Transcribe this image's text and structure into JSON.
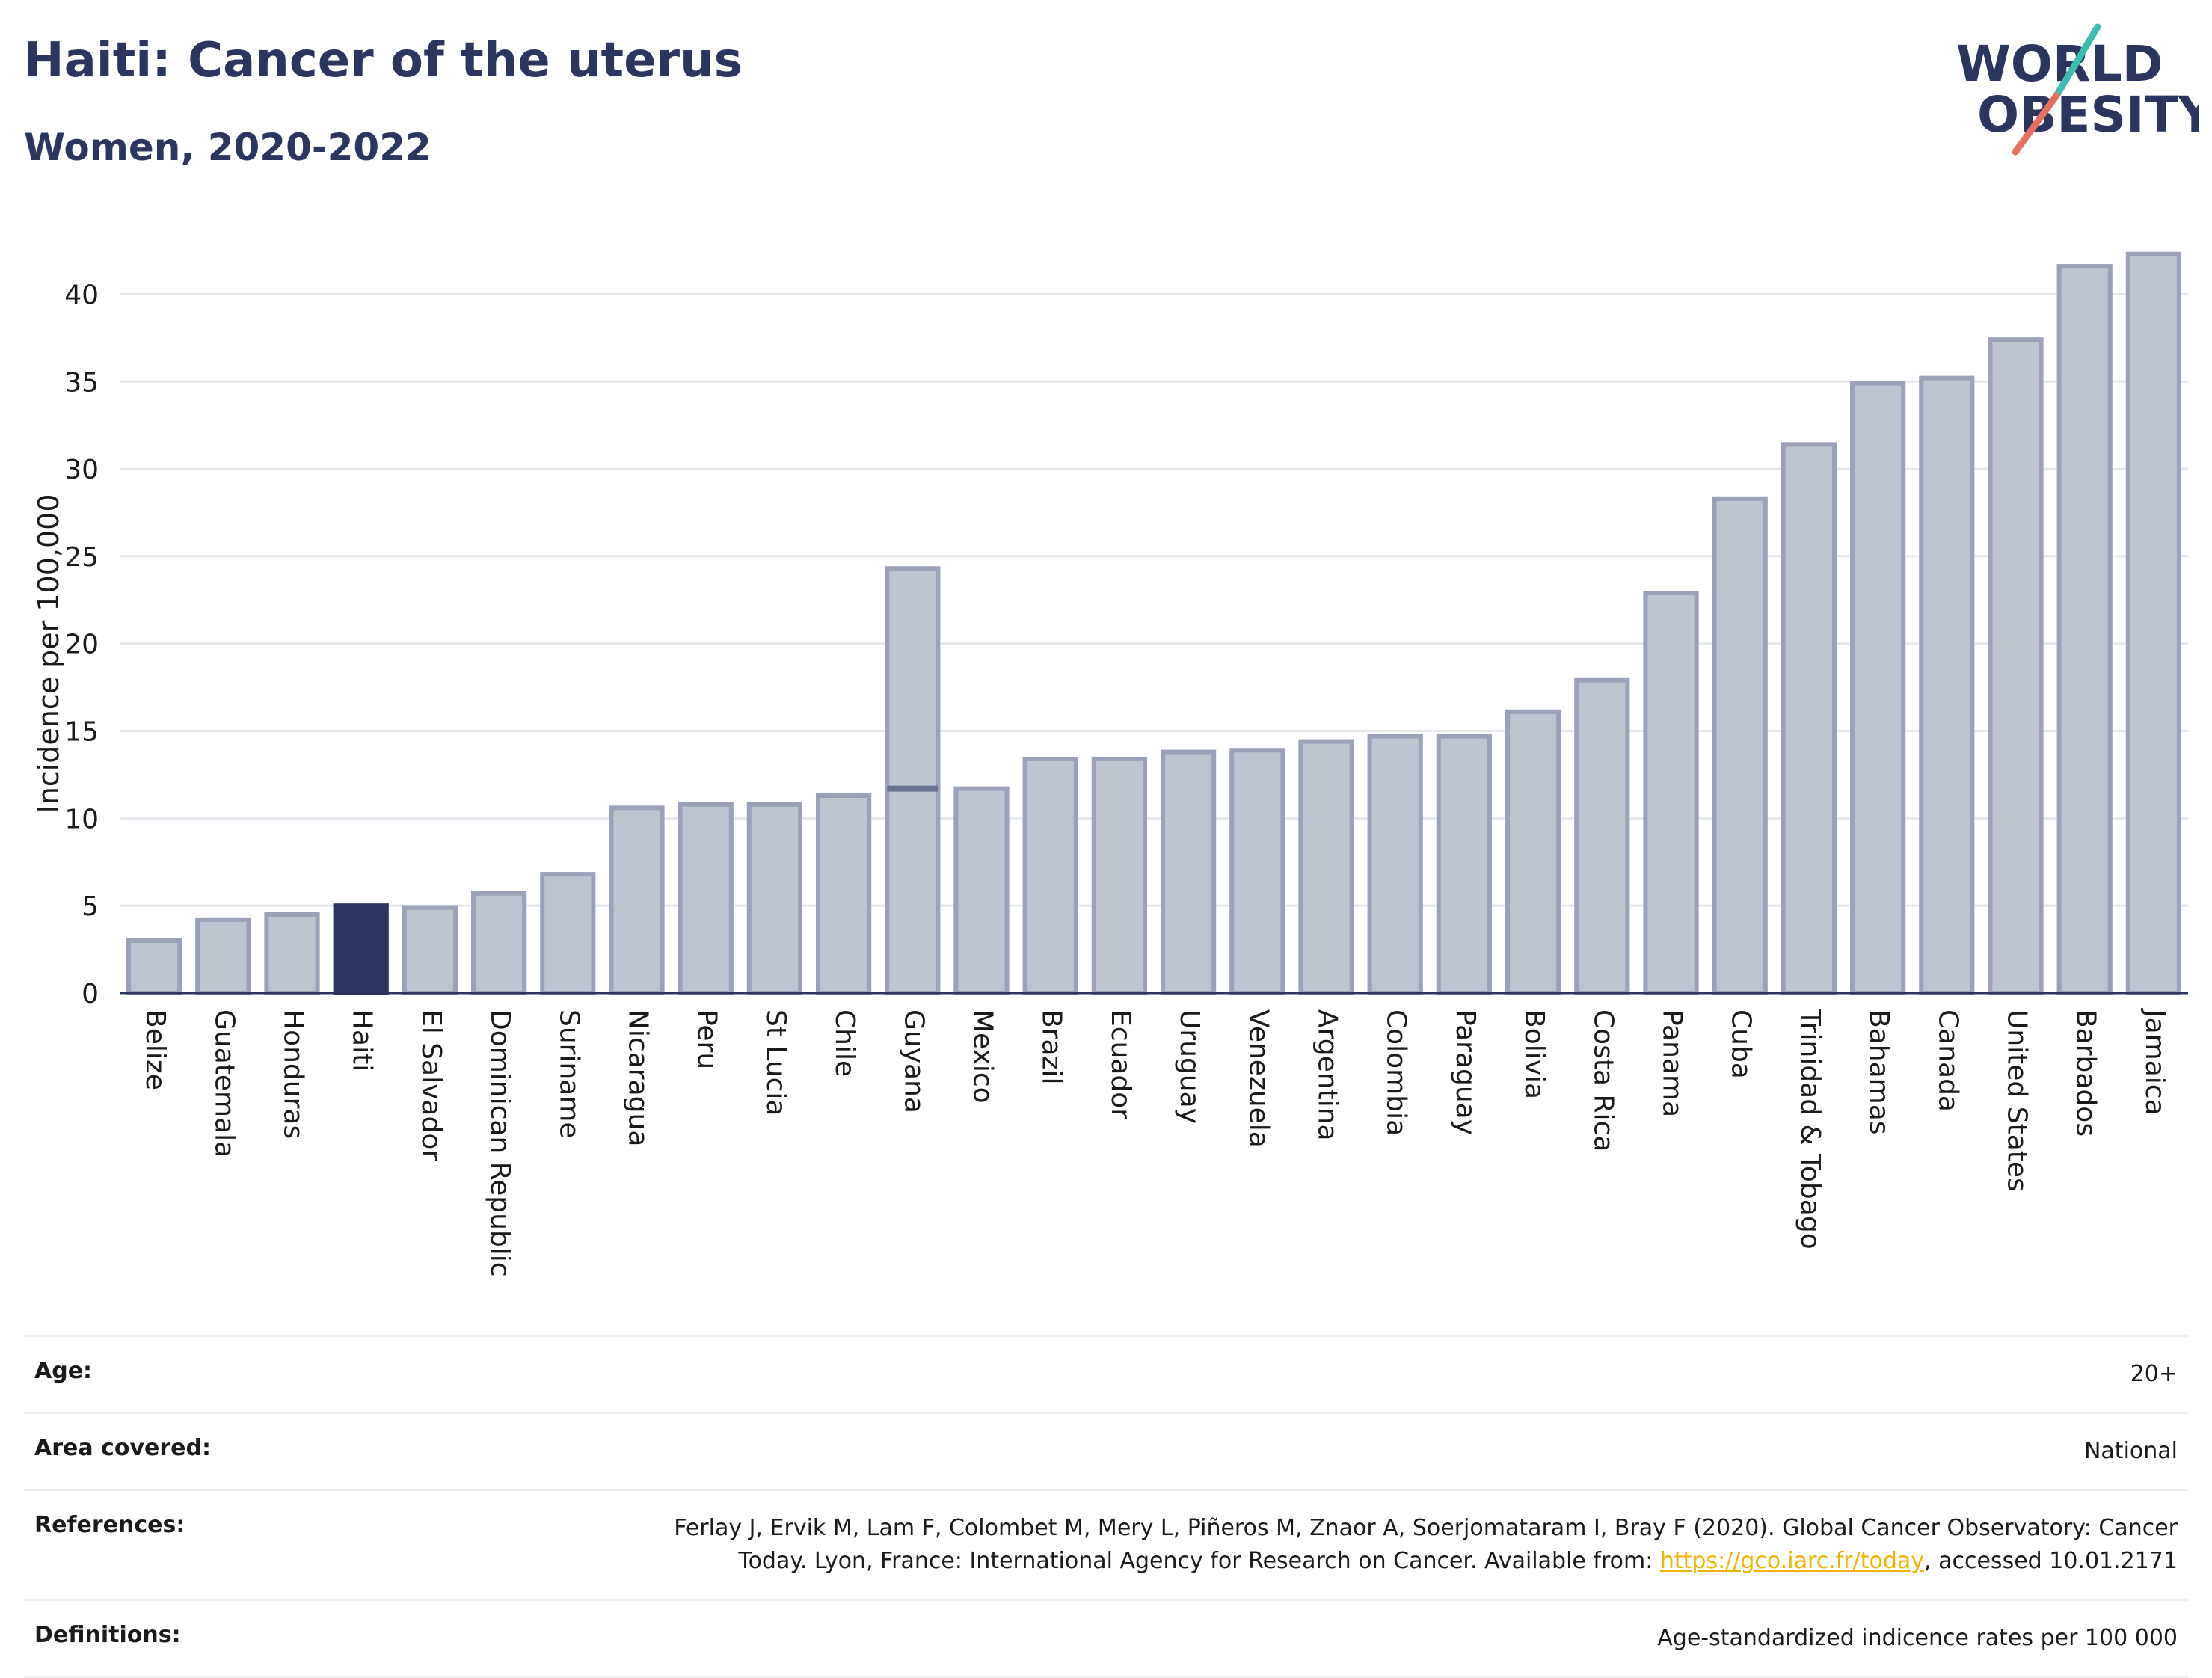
{
  "header": {
    "title": "Haiti: Cancer of the uterus",
    "subtitle": "Women, 2020-2022"
  },
  "logo": {
    "line1": "WORLD",
    "line2": "OBESITY",
    "colors": {
      "text": "#2b3560",
      "slash_teal": "#3dbdb1",
      "slash_coral": "#e8705f"
    }
  },
  "chart_data": {
    "type": "bar",
    "ylabel": "Incidence per 100,000",
    "xlabel": "",
    "ylim": [
      0,
      44
    ],
    "yticks": [
      0,
      5,
      10,
      15,
      20,
      25,
      30,
      35,
      40
    ],
    "grid": true,
    "highlight": "Haiti",
    "colors": {
      "bar": "#bec3d0",
      "bar_border": "#9aa1b8",
      "highlight": "#2b3560",
      "grid": "#e6e8ee",
      "axis": "#2b3560"
    },
    "categories": [
      "Belize",
      "Guatemala",
      "Honduras",
      "Haiti",
      "El Salvador",
      "Dominican Republic",
      "Suriname",
      "Nicaragua",
      "Peru",
      "St Lucia",
      "Chile",
      "Guyana",
      "Mexico",
      "Brazil",
      "Ecuador",
      "Uruguay",
      "Venezuela",
      "Argentina",
      "Colombia",
      "Paraguay",
      "Bolivia",
      "Costa Rica",
      "Panama",
      "Cuba",
      "Trinidad & Tobago",
      "Bahamas",
      "Canada",
      "United States",
      "Barbados",
      "Jamaica"
    ],
    "values": [
      3.0,
      4.2,
      4.5,
      5.0,
      4.9,
      5.7,
      6.8,
      10.6,
      10.8,
      10.8,
      11.3,
      24.3,
      11.7,
      13.4,
      13.4,
      13.8,
      13.9,
      14.4,
      14.7,
      14.7,
      16.1,
      17.9,
      22.9,
      28.3,
      31.4,
      34.9,
      35.2,
      37.4,
      41.6,
      42.3
    ],
    "inner_marks": [
      {
        "category": "Guyana",
        "value": 11.7
      }
    ]
  },
  "info": {
    "rows": [
      {
        "label": "Age:",
        "value": "20+"
      },
      {
        "label": "Area covered:",
        "value": "National"
      },
      {
        "label": "References:",
        "value_pre": "Ferlay J, Ervik M, Lam F, Colombet M, Mery L, Piñeros M, Znaor A, Soerjomataram I, Bray F (2020). Global Cancer Observatory: Cancer Today. Lyon, France: International Agency for Research on Cancer. Available from: ",
        "link": "https://gco.iarc.fr/today",
        "value_post": ", accessed 10.01.2171"
      },
      {
        "label": "Definitions:",
        "value": "Age-standardized indicence rates per 100 000"
      }
    ]
  }
}
